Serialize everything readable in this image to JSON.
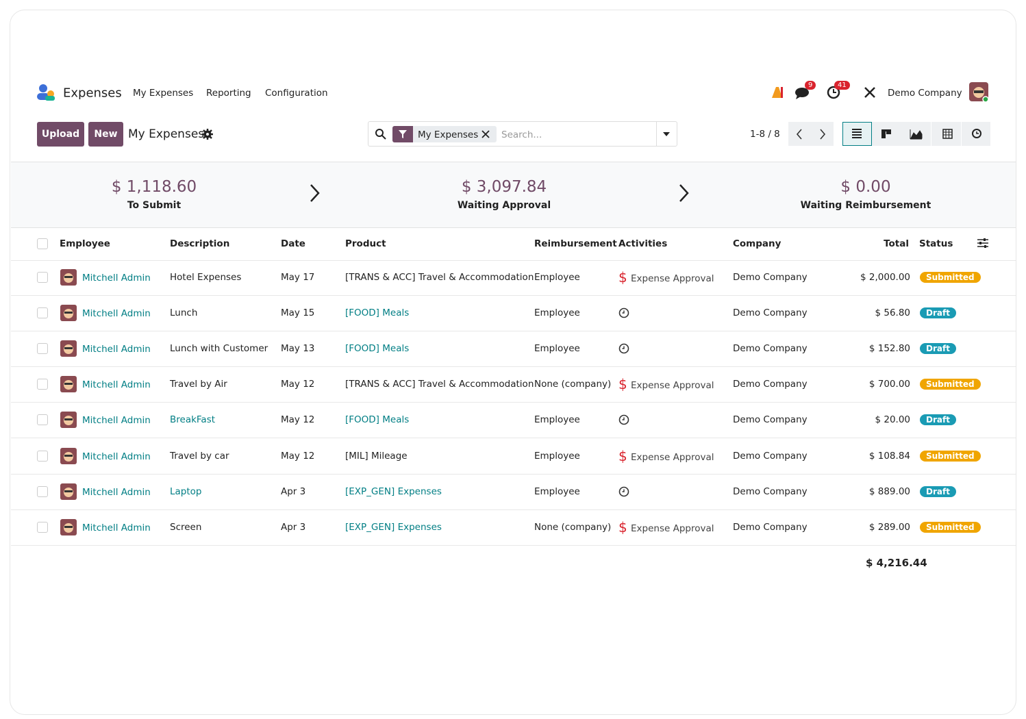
{
  "nav": {
    "app": "Expenses",
    "menu": [
      "My Expenses",
      "Reporting",
      "Configuration"
    ],
    "message_badge": "9",
    "activity_badge": "41",
    "company": "Demo Company"
  },
  "control": {
    "buttons": [
      "Upload",
      "New"
    ],
    "title": "My Expenses",
    "facet": "My Expenses",
    "search_placeholder": "Search...",
    "pager": "1-8 / 8"
  },
  "summary": [
    {
      "amount": "$ 1,118.60",
      "label": "To Submit"
    },
    {
      "amount": "$ 3,097.84",
      "label": "Waiting Approval"
    },
    {
      "amount": "$ 0.00",
      "label": "Waiting Reimbursement"
    }
  ],
  "table": {
    "headers": [
      "Employee",
      "Description",
      "Date",
      "Product",
      "Reimbursement",
      "Activities",
      "Company",
      "Total",
      "Status"
    ],
    "rows": [
      {
        "employee": "Mitchell Admin",
        "description": "Hotel Expenses",
        "date": "May 17",
        "product": "[TRANS & ACC] Travel & Accommodation",
        "reimbursement": "Employee",
        "activity": "Expense Approval",
        "company": "Demo Company",
        "total": "$ 2,000.00",
        "status": {
          "text": "Submitted",
          "color": "#f0a500"
        }
      },
      {
        "employee": "Mitchell Admin",
        "description": "Lunch",
        "date": "May 15",
        "product": "[FOOD] Meals",
        "reimbursement": "Employee",
        "company": "Demo Company",
        "total": "$ 56.80",
        "status": {
          "text": "Draft",
          "color": "#1a9bb4"
        }
      },
      {
        "employee": "Mitchell Admin",
        "description": "Lunch with Customer",
        "date": "May 13",
        "product": "[FOOD] Meals",
        "reimbursement": "Employee",
        "company": "Demo Company",
        "total": "$ 152.80",
        "status": {
          "text": "Draft",
          "color": "#1a9bb4"
        }
      },
      {
        "employee": "Mitchell Admin",
        "description": "Travel by Air",
        "date": "May 12",
        "product": "[TRANS & ACC] Travel & Accommodation",
        "reimbursement": "None (company)",
        "activity": "Expense Approval",
        "company": "Demo Company",
        "total": "$ 700.00",
        "status": {
          "text": "Submitted",
          "color": "#f0a500"
        }
      },
      {
        "employee": "Mitchell Admin",
        "description": "BreakFast",
        "date": "May 12",
        "product": "[FOOD] Meals",
        "reimbursement": "Employee",
        "company": "Demo Company",
        "total": "$ 20.00",
        "status": {
          "text": "Draft",
          "color": "#1a9bb4"
        }
      },
      {
        "employee": "Mitchell Admin",
        "description": "Travel by car",
        "date": "May 12",
        "product": "[MIL] Mileage",
        "reimbursement": "Employee",
        "activity": "Expense Approval",
        "company": "Demo Company",
        "total": "$ 108.84",
        "status": {
          "text": "Submitted",
          "color": "#f0a500"
        }
      },
      {
        "employee": "Mitchell Admin",
        "description": "Laptop",
        "date": "Apr 3",
        "product": "[EXP_GEN] Expenses",
        "reimbursement": "Employee",
        "company": "Demo Company",
        "total": "$ 889.00",
        "status": {
          "text": "Draft",
          "color": "#1a9bb4"
        }
      },
      {
        "employee": "Mitchell Admin",
        "description": "Screen",
        "date": "Apr 3",
        "product": "[EXP_GEN] Expenses",
        "reimbursement": "None (company)",
        "activity": "Expense Approval",
        "company": "Demo Company",
        "total": "$ 289.00",
        "status": {
          "text": "Submitted",
          "color": "#f0a500"
        }
      }
    ],
    "total": "$ 4,216.44"
  }
}
